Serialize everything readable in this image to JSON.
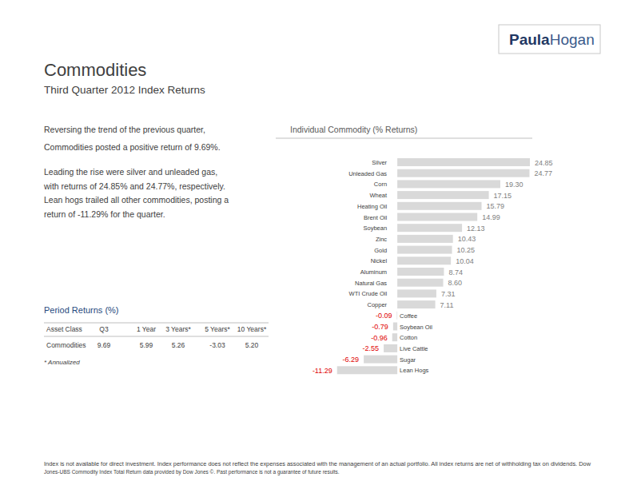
{
  "chart_data": {
    "type": "bar",
    "orientation": "horizontal",
    "title": "Individual Commodity (% Returns)",
    "categories": [
      "Silver",
      "Unleaded Gas",
      "Corn",
      "Wheat",
      "Heating Oil",
      "Brent Oil",
      "Soybean",
      "Zinc",
      "Gold",
      "Nickel",
      "Aluminum",
      "Natural Gas",
      "WTI Crude Oil",
      "Copper",
      "Coffee",
      "Soybean Oil",
      "Cotton",
      "Live Cattle",
      "Sugar",
      "Lean Hogs"
    ],
    "values": [
      24.85,
      24.77,
      19.3,
      17.15,
      15.79,
      14.99,
      12.13,
      10.43,
      10.25,
      10.04,
      8.74,
      8.6,
      7.31,
      7.11,
      -0.09,
      -0.79,
      -0.96,
      -2.55,
      -6.29,
      -11.29
    ],
    "value_labels": [
      "24.85",
      "24.77",
      "19.30",
      "17.15",
      "15.79",
      "14.99",
      "12.13",
      "10.43",
      "10.25",
      "10.04",
      "8.74",
      "8.60",
      "7.31",
      "7.11",
      "-0.09",
      "-0.79",
      "-0.96",
      "-2.55",
      "-6.29",
      "-11.29"
    ],
    "xlim": [
      -12,
      25
    ],
    "color": "#d9d9d9",
    "data_labels": true,
    "tick_labels": false
  },
  "page": {
    "logo": {
      "bold": "Paula",
      "light": "Hogan"
    },
    "title": "Commodities",
    "subtitle": "Third Quarter 2012 Index Returns",
    "summary": [
      "Reversing the trend of the previous quarter,",
      "Commodities posted a positive return of 9.69%."
    ],
    "detail": [
      "Leading the rise were silver and unleaded gas,",
      "with returns of 24.85% and 24.77%, respectively.",
      "Lean hogs trailed all other commodities, posting a",
      "return of -11.29% for the quarter."
    ],
    "period_returns": {
      "title": "Period Returns (%)",
      "table": {
        "header": [
          "Asset Class",
          "Q3",
          "1 Year",
          "3 Years*",
          "5 Years*",
          "10 Years*"
        ],
        "rows": [
          [
            "Commodities",
            "9.69",
            "5.99",
            "5.26",
            "-3.03",
            "5.20"
          ]
        ]
      },
      "note": "* Annualized"
    },
    "footer": [
      "Index is not available for direct investment. Index performance does not reflect the expenses associated with the management of an actual portfolio. All index returns are net of withholding tax on dividends. Dow",
      "Jones-UBS Commodity Index Total Return data provided by Dow Jones ©.  Past performance is not a guarantee of future results."
    ]
  }
}
